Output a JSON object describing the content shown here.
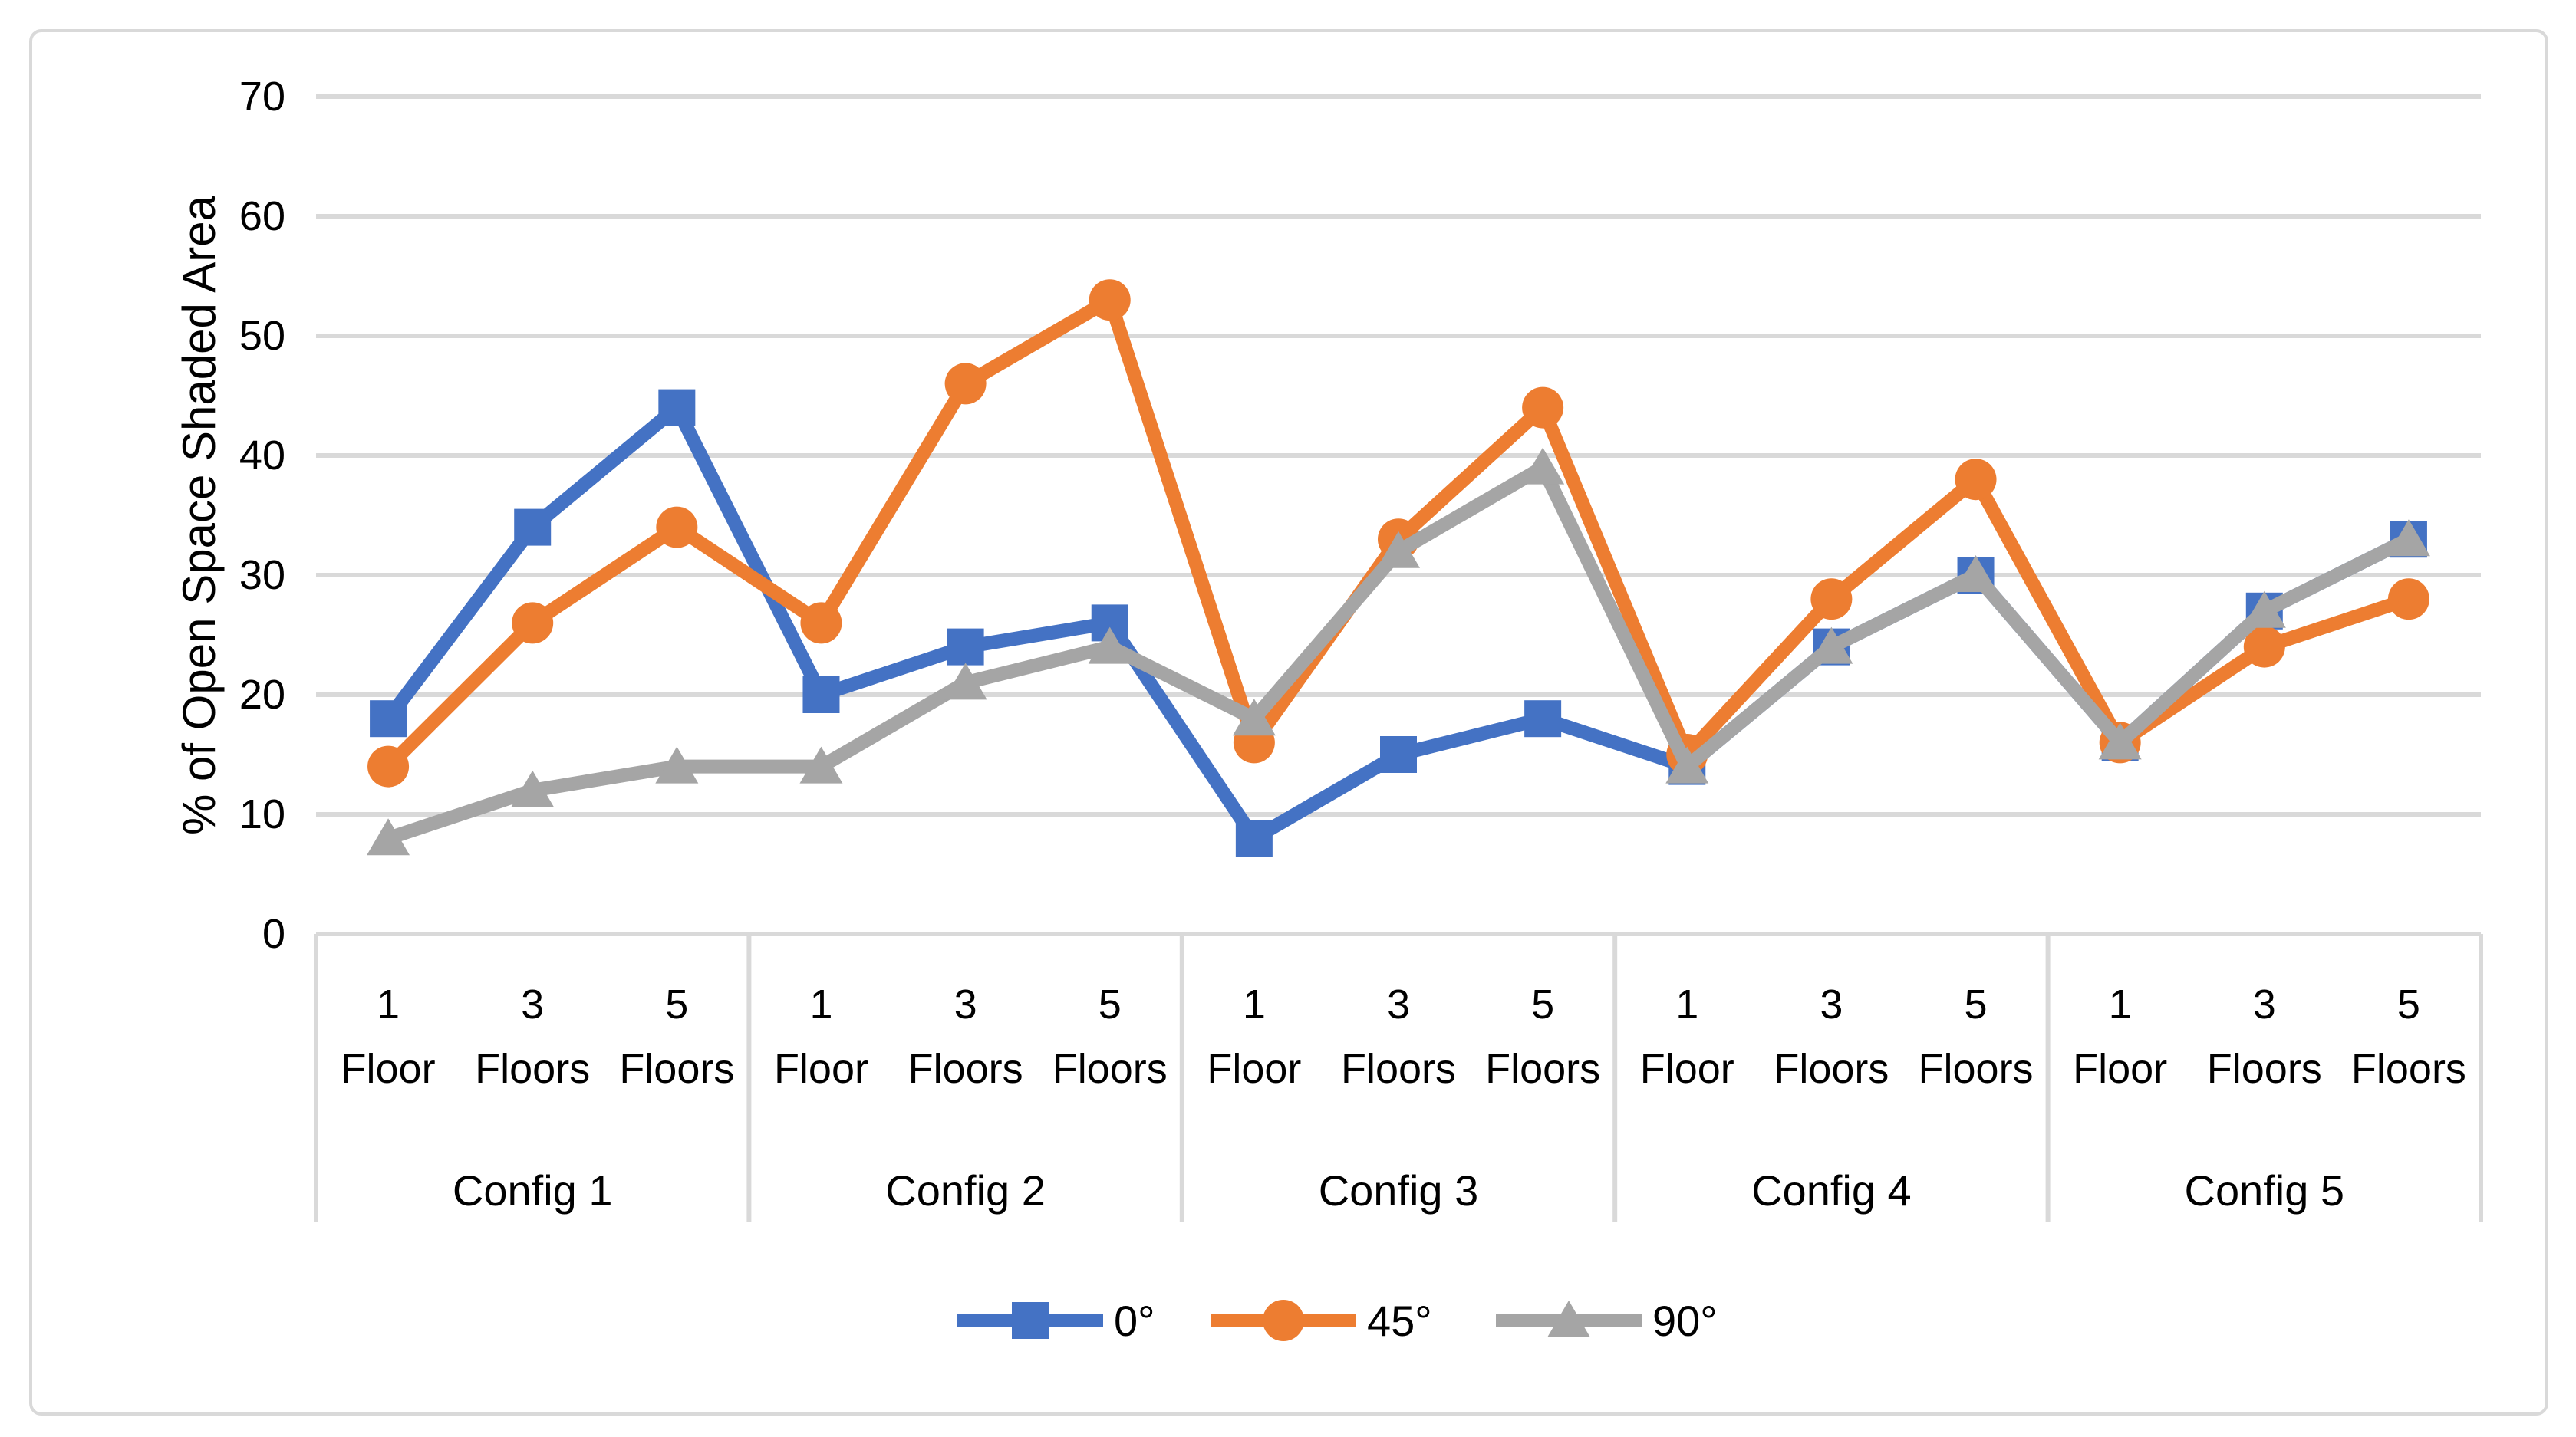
{
  "chart_data": {
    "type": "line",
    "title": "",
    "ylabel": "% of Open Space Shaded Area",
    "xlabel": "",
    "ylim": [
      0,
      70
    ],
    "yticks": [
      0,
      10,
      20,
      30,
      40,
      50,
      60,
      70
    ],
    "grid": true,
    "legend_position": "bottom",
    "groups": [
      "Config 1",
      "Config 2",
      "Config 3",
      "Config 4",
      "Config 5"
    ],
    "categories_per_group": [
      {
        "count": "1",
        "word": "Floor"
      },
      {
        "count": "3",
        "word": "Floors"
      },
      {
        "count": "5",
        "word": "Floors"
      }
    ],
    "series": [
      {
        "name": "0°",
        "color": "#4472C4",
        "marker": "square",
        "values": [
          [
            18,
            34,
            44
          ],
          [
            20,
            24,
            26
          ],
          [
            8,
            15,
            18
          ],
          [
            14,
            24,
            30
          ],
          [
            16,
            27,
            33
          ]
        ]
      },
      {
        "name": "45°",
        "color": "#ED7D31",
        "marker": "circle",
        "values": [
          [
            14,
            26,
            34
          ],
          [
            26,
            46,
            53
          ],
          [
            16,
            33,
            44
          ],
          [
            15,
            28,
            38
          ],
          [
            16,
            24,
            28
          ]
        ]
      },
      {
        "name": "90°",
        "color": "#A5A5A5",
        "marker": "triangle",
        "values": [
          [
            8,
            12,
            14
          ],
          [
            14,
            21,
            24
          ],
          [
            18,
            32,
            39
          ],
          [
            14,
            24,
            30
          ],
          [
            16,
            27,
            33
          ]
        ]
      }
    ]
  },
  "style": {
    "background": "#FFFFFF",
    "frame_border_color": "#D9D9D9",
    "gridline_color": "#D9D9D9",
    "separator_color": "#D9D9D9",
    "text_color": "#000000"
  }
}
